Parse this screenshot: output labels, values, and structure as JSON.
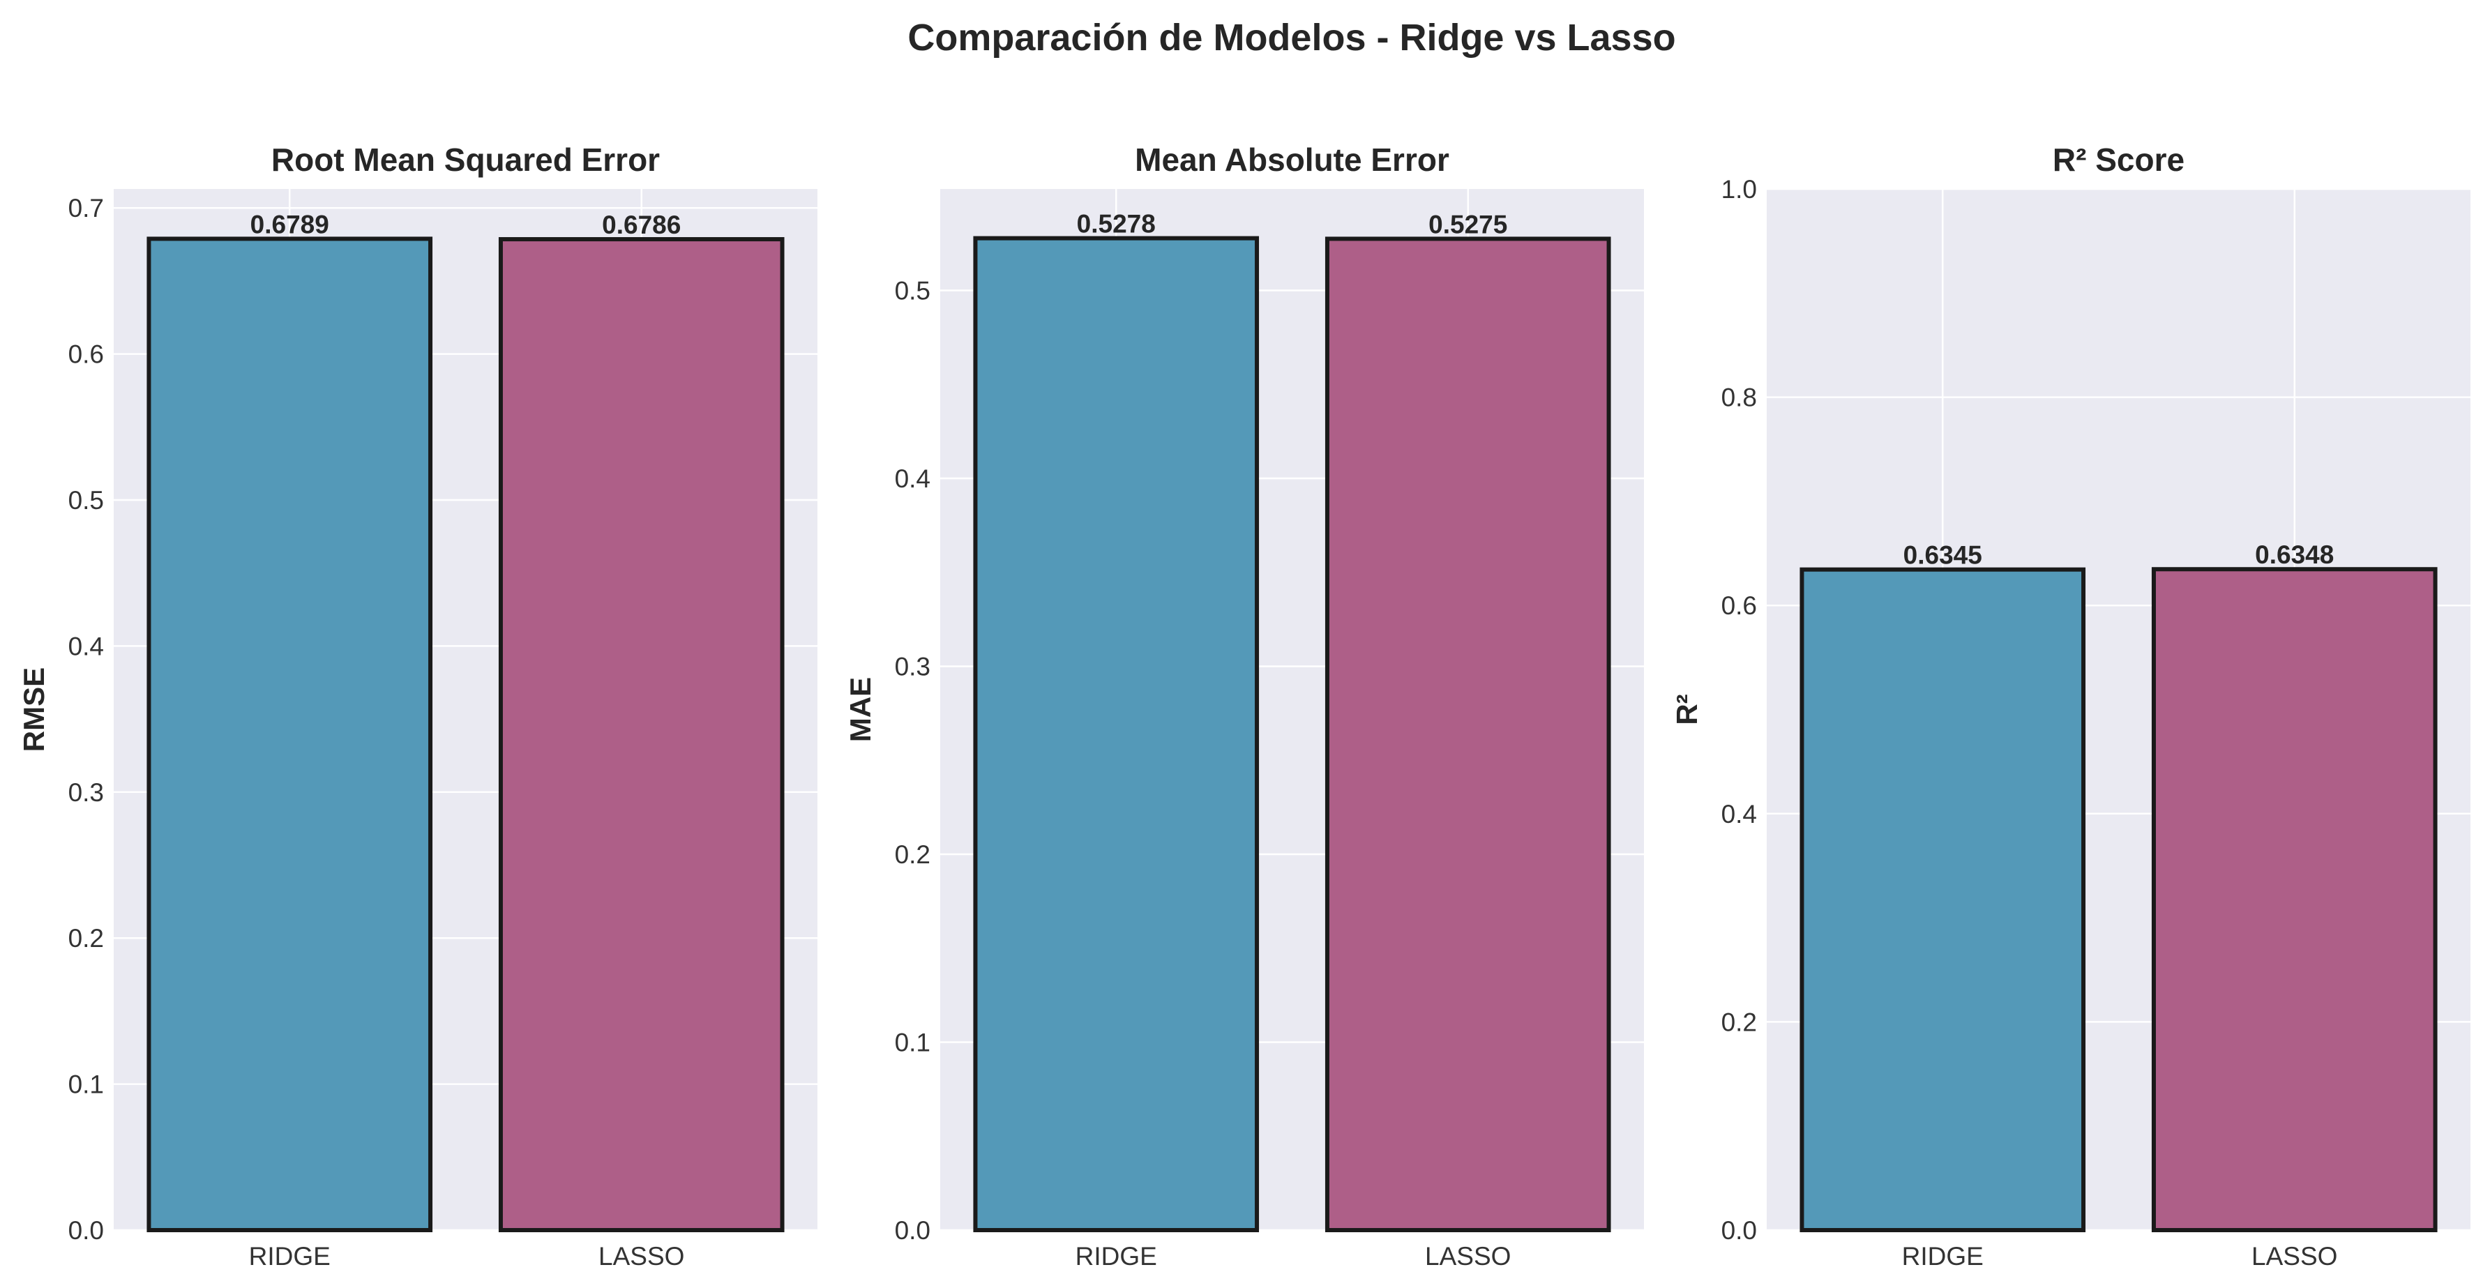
{
  "chart_data": {
    "title": "Comparación de Modelos - Ridge vs Lasso",
    "colors": {
      "background": "#eaeaf2",
      "grid": "#ffffff",
      "edge": "#1a1a1a",
      "series": [
        "#5499b8",
        "#ae5f88"
      ]
    },
    "panels": [
      {
        "type": "bar",
        "title": "Root Mean Squared Error",
        "xlabel": "",
        "ylabel": "RMSE",
        "categories": [
          "RIDGE",
          "LASSO"
        ],
        "values": [
          0.6789,
          0.6786
        ],
        "value_labels": [
          "0.6789",
          "0.6786"
        ],
        "ylim": [
          0,
          0.713
        ],
        "yticks": [
          0.0,
          0.1,
          0.2,
          0.3,
          0.4,
          0.5,
          0.6,
          0.7
        ],
        "ytick_labels": [
          "0.0",
          "0.1",
          "0.2",
          "0.3",
          "0.4",
          "0.5",
          "0.6",
          "0.7"
        ],
        "grid": true
      },
      {
        "type": "bar",
        "title": "Mean Absolute Error",
        "xlabel": "",
        "ylabel": "MAE",
        "categories": [
          "RIDGE",
          "LASSO"
        ],
        "values": [
          0.5278,
          0.5275
        ],
        "value_labels": [
          "0.5278",
          "0.5275"
        ],
        "ylim": [
          0,
          0.554
        ],
        "yticks": [
          0.0,
          0.1,
          0.2,
          0.3,
          0.4,
          0.5
        ],
        "ytick_labels": [
          "0.0",
          "0.1",
          "0.2",
          "0.3",
          "0.4",
          "0.5"
        ],
        "grid": true
      },
      {
        "type": "bar",
        "title": "R² Score",
        "xlabel": "",
        "ylabel": "R²",
        "categories": [
          "RIDGE",
          "LASSO"
        ],
        "values": [
          0.6345,
          0.6348
        ],
        "value_labels": [
          "0.6345",
          "0.6348"
        ],
        "ylim": [
          0,
          1.0
        ],
        "yticks": [
          0.0,
          0.2,
          0.4,
          0.6,
          0.8,
          1.0
        ],
        "ytick_labels": [
          "0.0",
          "0.2",
          "0.4",
          "0.6",
          "0.8",
          "1.0"
        ],
        "grid": true
      }
    ]
  }
}
